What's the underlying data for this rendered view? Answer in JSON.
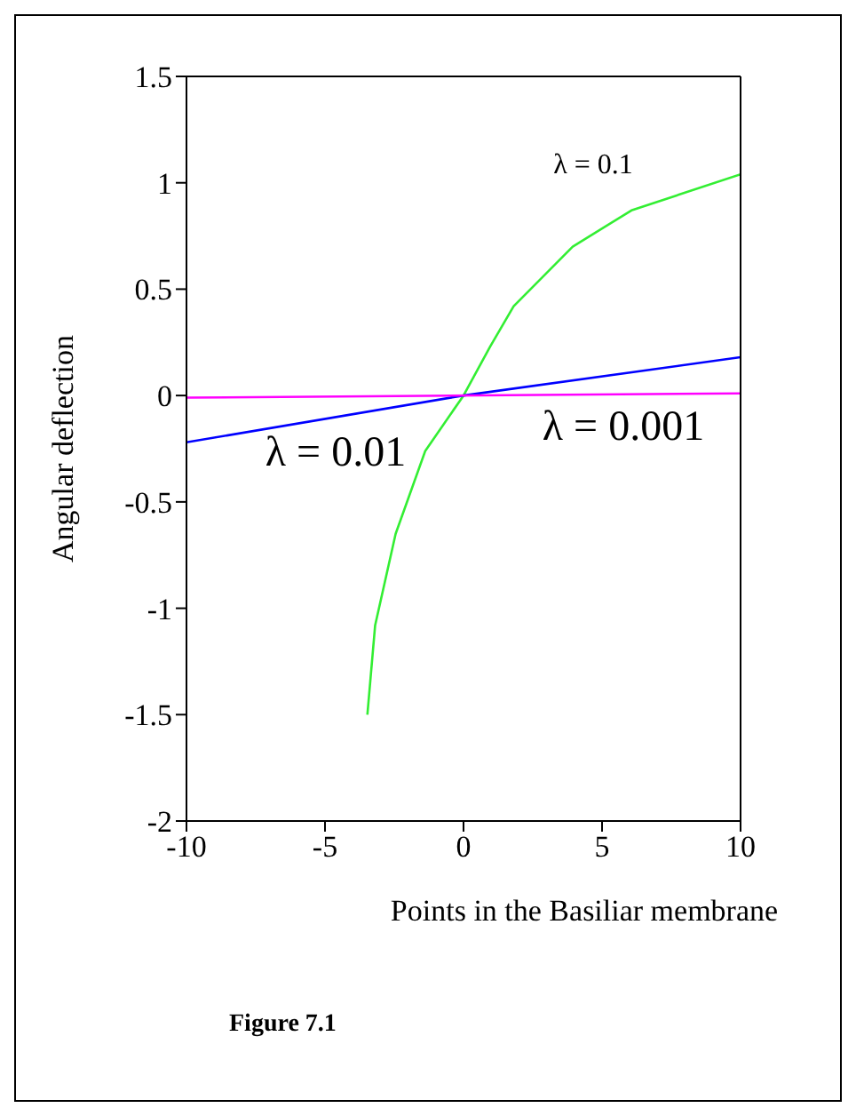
{
  "chart_data": {
    "type": "line",
    "title": "Figure 7.1",
    "xlabel": "Points in the Basiliar membrane",
    "ylabel": "Angular deflection",
    "xlim": [
      -10,
      10
    ],
    "xticks": [
      -10,
      -5,
      0,
      5,
      10
    ],
    "ylim": [
      -2,
      1.5
    ],
    "yticks": [
      -2,
      -1.5,
      -1,
      -0.5,
      0,
      0.5,
      1,
      1.5
    ],
    "marker": "none",
    "line_style": "solid",
    "series": [
      {
        "name": "λ = 0.1",
        "color": "#33ee33",
        "x": [
          -3.47,
          -3.19,
          -2.45,
          -1.38,
          0,
          0.96,
          1.81,
          3.94,
          6.06,
          10
        ],
        "values": [
          -1.5,
          -1.08,
          -0.65,
          -0.26,
          0,
          0.23,
          0.42,
          0.7,
          0.87,
          1.04
        ]
      },
      {
        "name": "λ = 0.01",
        "color": "#0000ff",
        "x": [
          -10,
          0,
          10
        ],
        "values": [
          -0.22,
          0,
          0.18
        ]
      },
      {
        "name": "λ = 0.001",
        "color": "#ff00ff",
        "x": [
          -10,
          10
        ],
        "values": [
          -0.01,
          0.01
        ]
      }
    ]
  }
}
